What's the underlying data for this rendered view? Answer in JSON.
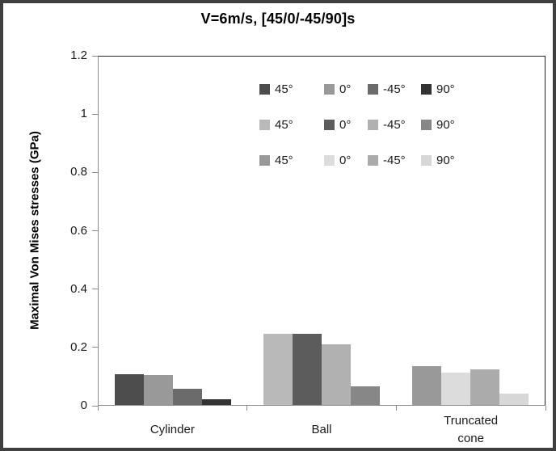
{
  "colors": {
    "outer_border": "#3f3f3f",
    "plot_border": "#262626",
    "axis": "#8c8c8c",
    "text": "#1a1a1a",
    "background": "#ffffff"
  },
  "chart_data": {
    "type": "bar",
    "title": "V=6m/s, [45/0/-45/90]s",
    "ylabel": "Maximal Von Mises stresses (GPa)",
    "xlabel": "",
    "ylim": [
      0,
      1.2
    ],
    "ytick_labels": [
      "0",
      "0.2",
      "0.4",
      "0.6",
      "0.8",
      "1",
      "1.2"
    ],
    "grid": false,
    "legend_position": "inside-top-center",
    "categories": [
      "Cylinder",
      "Ball",
      "Truncated cone"
    ],
    "groups": [
      {
        "category": "Cylinder",
        "bars": [
          {
            "label": "45°",
            "value": 0.105,
            "color": "#4d4d4d"
          },
          {
            "label": "0°",
            "value": 0.102,
            "color": "#999999"
          },
          {
            "label": "-45°",
            "value": 0.057,
            "color": "#6b6b6b"
          },
          {
            "label": "90°",
            "value": 0.02,
            "color": "#333333"
          }
        ]
      },
      {
        "category": "Ball",
        "bars": [
          {
            "label": "45°",
            "value": 0.245,
            "color": "#b9b9b9"
          },
          {
            "label": "0°",
            "value": 0.245,
            "color": "#5c5c5c"
          },
          {
            "label": "-45°",
            "value": 0.21,
            "color": "#b1b1b1"
          },
          {
            "label": "90°",
            "value": 0.065,
            "color": "#878787"
          }
        ]
      },
      {
        "category": "Truncated cone",
        "bars": [
          {
            "label": "45°",
            "value": 0.135,
            "color": "#999999"
          },
          {
            "label": "0°",
            "value": 0.11,
            "color": "#dcdcdc"
          },
          {
            "label": "-45°",
            "value": 0.122,
            "color": "#ababab"
          },
          {
            "label": "90°",
            "value": 0.04,
            "color": "#d7d7d7"
          }
        ]
      }
    ],
    "legend_rows": [
      [
        {
          "label": "45°",
          "color": "#4d4d4d"
        },
        {
          "label": "0°",
          "color": "#999999"
        },
        {
          "label": "-45°",
          "color": "#6b6b6b"
        },
        {
          "label": "90°",
          "color": "#333333"
        }
      ],
      [
        {
          "label": "45°",
          "color": "#b9b9b9"
        },
        {
          "label": "0°",
          "color": "#5c5c5c"
        },
        {
          "label": "-45°",
          "color": "#b1b1b1"
        },
        {
          "label": "90°",
          "color": "#878787"
        }
      ],
      [
        {
          "label": "45°",
          "color": "#999999"
        },
        {
          "label": "0°",
          "color": "#dcdcdc"
        },
        {
          "label": "-45°",
          "color": "#ababab"
        },
        {
          "label": "90°",
          "color": "#d7d7d7"
        }
      ]
    ]
  }
}
